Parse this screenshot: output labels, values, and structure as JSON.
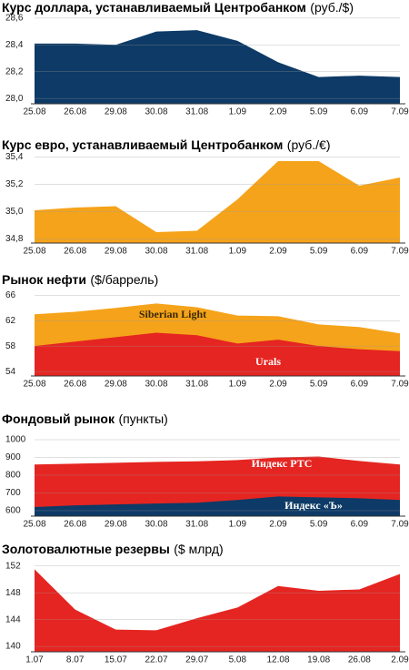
{
  "chart_data": [
    {
      "type": "area",
      "title": "Курс доллара, устанавливаемый Центробанком",
      "unit": "(руб./$)",
      "categories": [
        "25.08",
        "26.08",
        "29.08",
        "30.08",
        "31.08",
        "1.09",
        "2.09",
        "5.09",
        "6.09",
        "7.09"
      ],
      "values": [
        28.41,
        28.41,
        28.4,
        28.5,
        28.51,
        28.43,
        28.27,
        28.16,
        28.17,
        28.16
      ],
      "color": "#0d3a66",
      "ylim": [
        27.96,
        28.64
      ],
      "yticks": [
        {
          "value": 28.6,
          "label": "28,6"
        },
        {
          "value": 28.4,
          "label": "28,4"
        },
        {
          "value": 28.2,
          "label": "28,2"
        },
        {
          "value": 28.0,
          "label": "28,0"
        }
      ],
      "grid": true
    },
    {
      "type": "area",
      "title": "Курс евро, устанавливаемый Центробанком",
      "unit": "(руб./€)",
      "categories": [
        "25.08",
        "26.08",
        "29.08",
        "30.08",
        "31.08",
        "1.09",
        "2.09",
        "5.09",
        "6.09",
        "7.09"
      ],
      "values": [
        35.01,
        35.03,
        35.04,
        34.85,
        34.86,
        35.09,
        35.37,
        35.37,
        35.19,
        35.25
      ],
      "color": "#f5a31a",
      "ylim": [
        34.77,
        35.43
      ],
      "yticks": [
        {
          "value": 35.4,
          "label": "35,4"
        },
        {
          "value": 35.2,
          "label": "35,2"
        },
        {
          "value": 35.0,
          "label": "35,0"
        },
        {
          "value": 34.8,
          "label": "34,8"
        }
      ],
      "grid": true
    },
    {
      "type": "area",
      "title": "Рынок нефти",
      "unit": "($/баррель)",
      "categories": [
        "25.08",
        "26.08",
        "29.08",
        "30.08",
        "31.08",
        "1.09",
        "2.09",
        "5.09",
        "6.09",
        "7.09"
      ],
      "series": [
        {
          "name": "Siberian Light",
          "color": "#f5a31a",
          "values": [
            63.0,
            63.4,
            64.0,
            64.7,
            64.1,
            62.8,
            62.7,
            61.4,
            61.0,
            60.0
          ]
        },
        {
          "name": "Urals",
          "color": "#e52521",
          "values": [
            58.0,
            58.7,
            59.4,
            60.1,
            59.7,
            58.4,
            59.0,
            58.0,
            57.5,
            57.2
          ]
        }
      ],
      "ylim": [
        53.3,
        66.9
      ],
      "yticks": [
        66,
        62,
        58,
        54
      ],
      "grid": true
    },
    {
      "type": "area",
      "title": "Фондовый рынок",
      "unit": "(пункты)",
      "categories": [
        "25.08",
        "26.08",
        "29.08",
        "30.08",
        "31.08",
        "1.09",
        "2.09",
        "5.09",
        "6.09",
        "7.09"
      ],
      "series": [
        {
          "name": "Индекс РТС",
          "color": "#e52521",
          "values": [
            860,
            865,
            870,
            875,
            878,
            885,
            900,
            905,
            880,
            860
          ]
        },
        {
          "name": "Индекс «Ъ»",
          "color": "#0d3a66",
          "values": [
            620,
            630,
            635,
            640,
            645,
            660,
            680,
            675,
            670,
            660
          ]
        }
      ],
      "ylim": [
        569,
        1036
      ],
      "yticks": [
        1000,
        900,
        800,
        700,
        600
      ],
      "grid": true
    },
    {
      "type": "area",
      "title": "Золотовалютные резервы",
      "unit": "($ млрд)",
      "categories": [
        "1.07",
        "8.07",
        "15.07",
        "22.07",
        "29.07",
        "5.08",
        "12.08",
        "19.08",
        "26.08",
        "2.09"
      ],
      "values": [
        151.5,
        145.5,
        142.5,
        142.4,
        144.2,
        145.8,
        149.0,
        148.3,
        148.5,
        150.8
      ],
      "color": "#e52521",
      "ylim": [
        139.2,
        152.5
      ],
      "yticks": [
        152,
        148,
        144,
        140
      ],
      "grid": true
    }
  ]
}
